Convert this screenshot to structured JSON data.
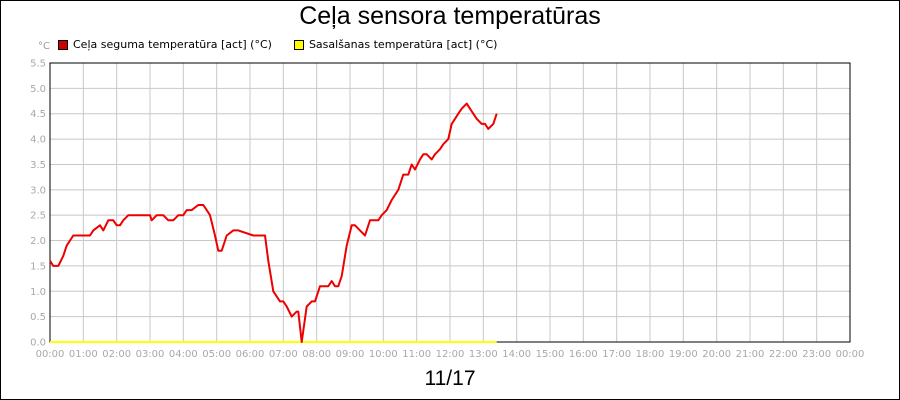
{
  "title": "Ceļa sensora temperatūras",
  "unit_label": "°C",
  "date_label": "11/17",
  "legend": [
    {
      "label": "Ceļa seguma temperatūra [act] (°C)",
      "color": "#cc0000"
    },
    {
      "label": "Sasalšanas temperatūra [act] (°C)",
      "color": "#ffff00"
    }
  ],
  "chart_data": {
    "type": "line",
    "title": "Ceļa sensora temperatūras",
    "ylabel": "°C",
    "ylim": [
      0,
      5.5
    ],
    "yticks": [
      "0.0",
      "0.5",
      "1.0",
      "1.5",
      "2.0",
      "2.5",
      "3.0",
      "3.5",
      "4.0",
      "4.5",
      "5.0",
      "5.5"
    ],
    "xlim": [
      0,
      24
    ],
    "xticks": [
      "00:00",
      "01:00",
      "02:00",
      "03:00",
      "04:00",
      "05:00",
      "06:00",
      "07:00",
      "08:00",
      "09:00",
      "10:00",
      "11:00",
      "12:00",
      "13:00",
      "14:00",
      "15:00",
      "16:00",
      "17:00",
      "18:00",
      "19:00",
      "20:00",
      "21:00",
      "22:00",
      "23:00",
      "00:00"
    ],
    "grid": true,
    "legend_position": "top-left",
    "series": [
      {
        "name": "Ceļa seguma temperatūra [act] (°C)",
        "color": "#ee0000",
        "x": [
          0,
          0.1,
          0.25,
          0.4,
          0.5,
          0.7,
          1.0,
          1.2,
          1.3,
          1.5,
          1.6,
          1.75,
          1.9,
          2.0,
          2.1,
          2.2,
          2.35,
          2.5,
          2.75,
          3.0,
          3.05,
          3.2,
          3.4,
          3.55,
          3.7,
          3.85,
          4.0,
          4.1,
          4.25,
          4.45,
          4.6,
          4.7,
          4.8,
          4.95,
          5.05,
          5.15,
          5.3,
          5.5,
          5.65,
          6.1,
          6.2,
          6.3,
          6.45,
          6.55,
          6.7,
          6.9,
          7.0,
          7.1,
          7.25,
          7.4,
          7.42,
          7.45,
          7.55,
          7.7,
          7.85,
          7.95,
          8.1,
          8.25,
          8.35,
          8.45,
          8.55,
          8.65,
          8.75,
          8.9,
          9.05,
          9.15,
          9.3,
          9.45,
          9.6,
          9.75,
          9.85,
          9.95,
          10.1,
          10.25,
          10.45,
          10.6,
          10.75,
          10.85,
          10.95,
          11.1,
          11.2,
          11.3,
          11.45,
          11.55,
          11.7,
          11.8,
          11.95,
          12.05,
          12.25,
          12.35,
          12.5,
          12.6,
          12.7,
          12.8,
          12.95,
          13.05,
          13.15,
          13.3,
          13.4
        ],
        "values": [
          1.6,
          1.5,
          1.5,
          1.7,
          1.9,
          2.1,
          2.1,
          2.1,
          2.2,
          2.3,
          2.2,
          2.4,
          2.4,
          2.3,
          2.3,
          2.4,
          2.5,
          2.5,
          2.5,
          2.5,
          2.4,
          2.5,
          2.5,
          2.4,
          2.4,
          2.5,
          2.5,
          2.6,
          2.6,
          2.7,
          2.7,
          2.6,
          2.5,
          2.1,
          1.8,
          1.8,
          2.1,
          2.2,
          2.2,
          2.1,
          2.1,
          2.1,
          2.1,
          1.6,
          1.0,
          0.8,
          0.8,
          0.7,
          0.5,
          0.6,
          0.6,
          0.6,
          0.0,
          0.7,
          0.8,
          0.8,
          1.1,
          1.1,
          1.1,
          1.2,
          1.1,
          1.1,
          1.3,
          1.9,
          2.3,
          2.3,
          2.2,
          2.1,
          2.4,
          2.4,
          2.4,
          2.5,
          2.6,
          2.8,
          3.0,
          3.3,
          3.3,
          3.5,
          3.4,
          3.6,
          3.7,
          3.7,
          3.6,
          3.7,
          3.8,
          3.9,
          4.0,
          4.3,
          4.5,
          4.6,
          4.7,
          4.6,
          4.5,
          4.4,
          4.3,
          4.3,
          4.2,
          4.3,
          4.5
        ]
      },
      {
        "name": "Sasalšanas temperatūra [act] (°C)",
        "color": "#ffff00",
        "x": [
          0,
          13.4
        ],
        "values": [
          0.0,
          0.0
        ]
      }
    ]
  }
}
